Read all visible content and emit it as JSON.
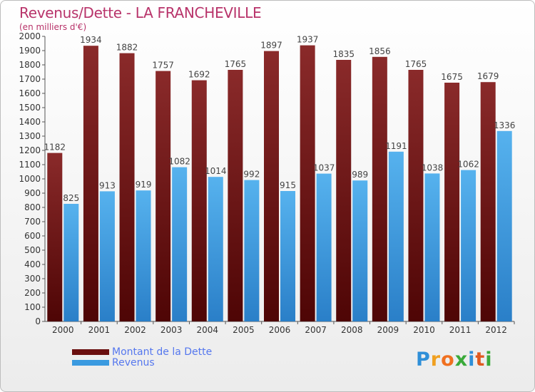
{
  "title": "Revenus/Dette - LA FRANCHEVILLE",
  "subtitle": "(en milliers d'€)",
  "chart_data": {
    "type": "bar",
    "categories": [
      "2000",
      "2001",
      "2002",
      "2003",
      "2004",
      "2005",
      "2006",
      "2007",
      "2008",
      "2009",
      "2010",
      "2011",
      "2012"
    ],
    "series": [
      {
        "name": "Montant de la Dette",
        "color": "#7a1c1c",
        "values": [
          1182,
          1934,
          1882,
          1757,
          1692,
          1765,
          1897,
          1937,
          1835,
          1856,
          1765,
          1675,
          1679
        ]
      },
      {
        "name": "Revenus",
        "color": "#3a9ae0",
        "values": [
          825,
          913,
          919,
          1082,
          1014,
          992,
          915,
          1037,
          989,
          1191,
          1038,
          1062,
          1336
        ]
      }
    ],
    "ylim": [
      0,
      2000
    ],
    "yticks": [
      0,
      100,
      200,
      300,
      400,
      500,
      600,
      700,
      800,
      900,
      1000,
      1100,
      1200,
      1300,
      1400,
      1500,
      1600,
      1700,
      1800,
      1900,
      2000
    ],
    "grid": false,
    "legend_position": "bottom-left"
  },
  "legend": {
    "items": [
      {
        "label": "Montant de la Dette",
        "color": "#6a0f0f"
      },
      {
        "label": "Revenus",
        "color": "#3a9ae0"
      }
    ]
  },
  "logo": {
    "text": "Proxiti",
    "letter_colors": [
      "#2f8fd8",
      "#f0a020",
      "#f07020",
      "#3aaa3a",
      "#2f8fd8",
      "#e05a20",
      "#3aaa3a"
    ]
  }
}
